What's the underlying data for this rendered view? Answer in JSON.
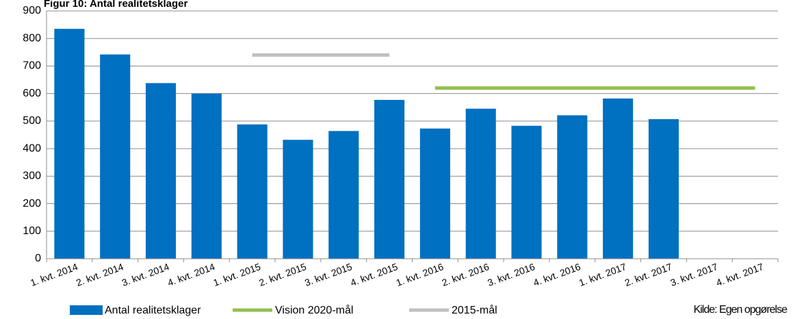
{
  "chart_data": {
    "type": "bar",
    "title": "Figur 10: Antal realitetsklager",
    "categories": [
      "1. kvt. 2014",
      "2. kvt. 2014",
      "3. kvt. 2014",
      "4. kvt. 2014",
      "1. kvt. 2015",
      "2. kvt. 2015",
      "3. kvt. 2015",
      "4. kvt. 2015",
      "1. kvt. 2016",
      "2. kvt. 2016",
      "3. kvt. 2016",
      "4. kvt. 2016",
      "1. kvt. 2017",
      "2. kvt. 2017",
      "3. kvt. 2017",
      "4. kvt. 2017"
    ],
    "series": [
      {
        "name": "Antal realitetsklager",
        "type": "bar",
        "color": "#0070c0",
        "values": [
          835,
          742,
          638,
          600,
          488,
          432,
          464,
          577,
          473,
          545,
          483,
          521,
          582,
          507,
          null,
          null
        ]
      },
      {
        "name": "Vision 2020-mål",
        "type": "line",
        "color": "#92c050",
        "values": [
          null,
          null,
          null,
          null,
          null,
          null,
          null,
          null,
          620,
          620,
          620,
          620,
          620,
          620,
          620,
          620
        ]
      },
      {
        "name": "2015-mål",
        "type": "line",
        "color": "#c0c0c0",
        "values": [
          null,
          null,
          null,
          null,
          740,
          740,
          740,
          740,
          null,
          null,
          null,
          null,
          null,
          null,
          null,
          null
        ]
      }
    ],
    "ylim": [
      0,
      900
    ],
    "yticks": [
      0,
      100,
      200,
      300,
      400,
      500,
      600,
      700,
      800,
      900
    ],
    "grid": true,
    "source": "Kilde: Egen opgørelse"
  }
}
